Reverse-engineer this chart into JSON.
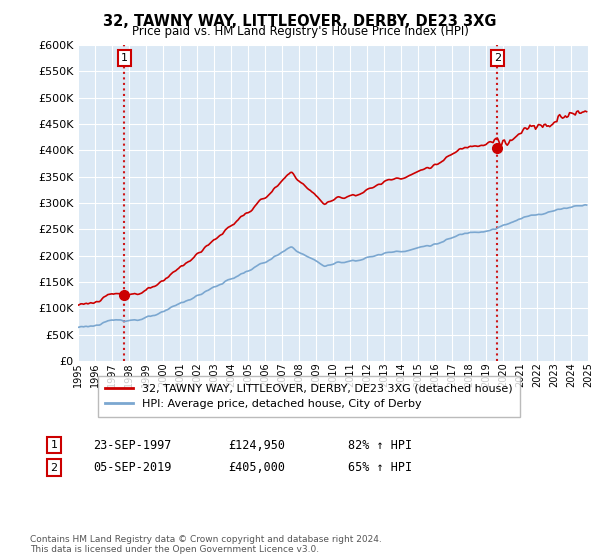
{
  "title": "32, TAWNY WAY, LITTLEOVER, DERBY, DE23 3XG",
  "subtitle": "Price paid vs. HM Land Registry's House Price Index (HPI)",
  "ytick_values": [
    0,
    50000,
    100000,
    150000,
    200000,
    250000,
    300000,
    350000,
    400000,
    450000,
    500000,
    550000,
    600000
  ],
  "x_start_year": 1995,
  "x_end_year": 2025,
  "purchase1_date": 1997.72,
  "purchase1_price": 124950,
  "purchase2_date": 2019.67,
  "purchase2_price": 405000,
  "legend_red": "32, TAWNY WAY, LITTLEOVER, DERBY, DE23 3XG (detached house)",
  "legend_blue": "HPI: Average price, detached house, City of Derby",
  "annotation1_date": "23-SEP-1997",
  "annotation1_price": "£124,950",
  "annotation1_hpi": "82% ↑ HPI",
  "annotation2_date": "05-SEP-2019",
  "annotation2_price": "£405,000",
  "annotation2_hpi": "65% ↑ HPI",
  "footer": "Contains HM Land Registry data © Crown copyright and database right 2024.\nThis data is licensed under the Open Government Licence v3.0.",
  "red_color": "#cc0000",
  "blue_color": "#7ba7d0",
  "chart_bg": "#dce9f5",
  "background_color": "#ffffff",
  "grid_color": "#ffffff"
}
